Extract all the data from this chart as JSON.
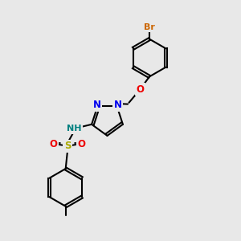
{
  "bg_color": "#e8e8e8",
  "bond_color": "#000000",
  "bond_width": 1.5,
  "atom_colors": {
    "N": "#0000ee",
    "O": "#ee0000",
    "S": "#aaaa00",
    "Br": "#cc6600",
    "NH": "#008080"
  },
  "font_size": 8.5,
  "font_size_br": 8.0,
  "font_size_nh": 8.0
}
